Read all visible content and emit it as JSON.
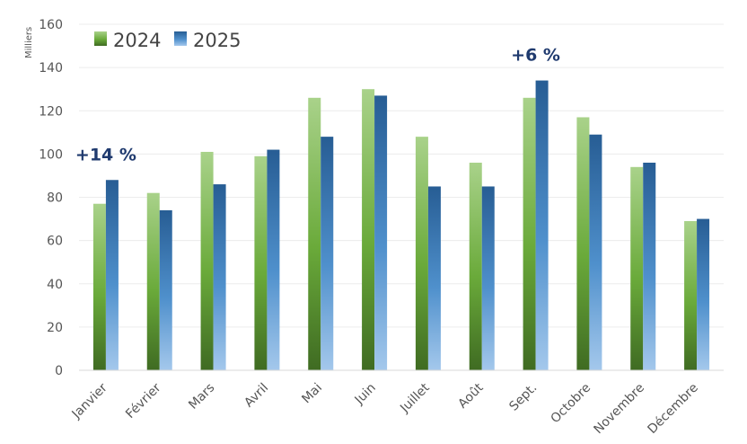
{
  "chart_data": {
    "type": "bar",
    "ylabel": "Milliers",
    "ylim": [
      0,
      160
    ],
    "yticks": [
      0,
      20,
      40,
      60,
      80,
      100,
      120,
      140,
      160
    ],
    "grid": true,
    "legend_position": "top-left",
    "categories": [
      "Janvier",
      "Février",
      "Mars",
      "Avril",
      "Mai",
      "Juin",
      "Juillet",
      "Août",
      "Sept.",
      "Octobre",
      "Novembre",
      "Décembre"
    ],
    "series": [
      {
        "name": "2024",
        "color": "#6aaa3a",
        "values": [
          77,
          82,
          101,
          99,
          126,
          130,
          108,
          96,
          126,
          117,
          94,
          69
        ]
      },
      {
        "name": "2025",
        "color": "#2e6aa6",
        "values": [
          88,
          74,
          86,
          102,
          108,
          127,
          85,
          85,
          134,
          109,
          96,
          70
        ]
      }
    ],
    "annotations": [
      {
        "text": "+14 %",
        "category": "Janvier"
      },
      {
        "text": "+6 %",
        "category": "Sept."
      }
    ]
  }
}
